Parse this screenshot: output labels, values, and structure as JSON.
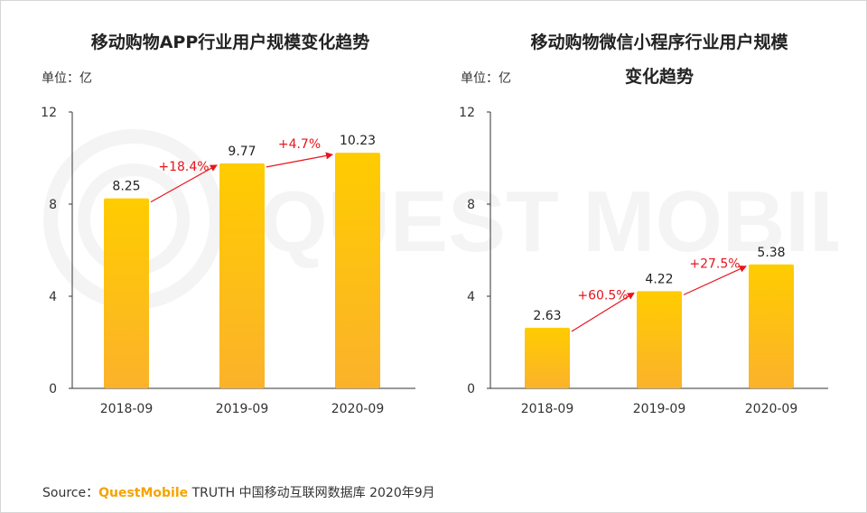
{
  "watermark": "QUEST MOBILE",
  "source": {
    "prefix": "Source：",
    "brand": "QuestMobile",
    "rest": " TRUTH 中国移动互联网数据库 2020年9月"
  },
  "colors": {
    "bar_top": "#ffcc00",
    "bar_bottom": "#fbb22b",
    "growth": "#e8141c",
    "axis": "#333333"
  },
  "chart_data": [
    {
      "type": "bar",
      "title": "移动购物APP行业用户规模变化趋势",
      "unit_label": "单位：亿",
      "categories": [
        "2018-09",
        "2019-09",
        "2020-09"
      ],
      "values": [
        8.25,
        9.77,
        10.23
      ],
      "data_labels": [
        "8.25",
        "9.77",
        "10.23"
      ],
      "growth_labels": [
        "+18.4%",
        "+4.7%"
      ],
      "yticks": [
        "0",
        "4",
        "8",
        "12"
      ],
      "ylim": [
        0,
        12
      ]
    },
    {
      "type": "bar",
      "title": "移动购物微信小程序行业用户规模\n变化趋势",
      "unit_label": "单位：亿",
      "categories": [
        "2018-09",
        "2019-09",
        "2020-09"
      ],
      "values": [
        2.63,
        4.22,
        5.38
      ],
      "data_labels": [
        "2.63",
        "4.22",
        "5.38"
      ],
      "growth_labels": [
        "+60.5%",
        "+27.5%"
      ],
      "yticks": [
        "0",
        "4",
        "8",
        "12"
      ],
      "ylim": [
        0,
        12
      ]
    }
  ]
}
